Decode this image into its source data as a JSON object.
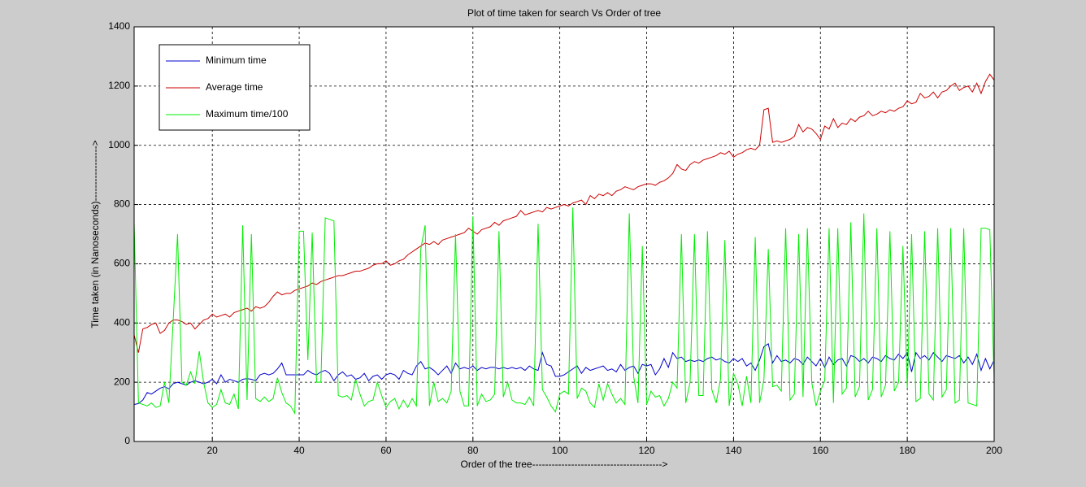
{
  "chart_data": {
    "type": "line",
    "title": "Plot of time taken for search  Vs Order of tree",
    "x_label": "Order of the tree---------------------------------------->",
    "y_label": "Time taken (in Nanoseconds)----------------->",
    "xlim": [
      2,
      200
    ],
    "ylim": [
      0,
      1400
    ],
    "xticks": [
      20,
      40,
      60,
      80,
      100,
      120,
      140,
      160,
      180,
      200
    ],
    "yticks": [
      0,
      200,
      400,
      600,
      800,
      1000,
      1200,
      1400
    ],
    "grid": true,
    "legend_position": "upper left",
    "x": [
      2,
      3,
      4,
      5,
      6,
      7,
      8,
      9,
      10,
      11,
      12,
      13,
      14,
      15,
      16,
      17,
      18,
      19,
      20,
      21,
      22,
      23,
      24,
      25,
      26,
      27,
      28,
      29,
      30,
      31,
      32,
      33,
      34,
      35,
      36,
      37,
      38,
      39,
      40,
      41,
      42,
      43,
      44,
      45,
      46,
      47,
      48,
      49,
      50,
      51,
      52,
      53,
      54,
      55,
      56,
      57,
      58,
      59,
      60,
      61,
      62,
      63,
      64,
      65,
      66,
      67,
      68,
      69,
      70,
      71,
      72,
      73,
      74,
      75,
      76,
      77,
      78,
      79,
      80,
      81,
      82,
      83,
      84,
      85,
      86,
      87,
      88,
      89,
      90,
      91,
      92,
      93,
      94,
      95,
      96,
      97,
      98,
      99,
      100,
      101,
      102,
      103,
      104,
      105,
      106,
      107,
      108,
      109,
      110,
      111,
      112,
      113,
      114,
      115,
      116,
      117,
      118,
      119,
      120,
      121,
      122,
      123,
      124,
      125,
      126,
      127,
      128,
      129,
      130,
      131,
      132,
      133,
      134,
      135,
      136,
      137,
      138,
      139,
      140,
      141,
      142,
      143,
      144,
      145,
      146,
      147,
      148,
      149,
      150,
      151,
      152,
      153,
      154,
      155,
      156,
      157,
      158,
      159,
      160,
      161,
      162,
      163,
      164,
      165,
      166,
      167,
      168,
      169,
      170,
      171,
      172,
      173,
      174,
      175,
      176,
      177,
      178,
      179,
      180,
      181,
      182,
      183,
      184,
      185,
      186,
      187,
      188,
      189,
      190,
      191,
      192,
      193,
      194,
      195,
      196,
      197,
      198,
      199,
      200
    ],
    "series": [
      {
        "name": "Minimum time",
        "color": "#0000cc",
        "values": [
          125,
          128,
          140,
          165,
          160,
          170,
          180,
          185,
          178,
          195,
          200,
          195,
          190,
          200,
          205,
          200,
          195,
          200,
          210,
          195,
          225,
          200,
          210,
          205,
          200,
          210,
          212,
          210,
          205,
          225,
          230,
          225,
          230,
          245,
          265,
          225,
          225,
          225,
          225,
          225,
          240,
          230,
          225,
          235,
          240,
          230,
          205,
          225,
          235,
          220,
          225,
          210,
          215,
          230,
          205,
          220,
          225,
          210,
          225,
          230,
          225,
          210,
          240,
          230,
          225,
          255,
          270,
          245,
          250,
          240,
          225,
          240,
          255,
          230,
          265,
          245,
          250,
          245,
          255,
          240,
          250,
          245,
          250,
          250,
          245,
          250,
          245,
          250,
          245,
          250,
          240,
          255,
          245,
          240,
          300,
          260,
          255,
          220,
          220,
          225,
          235,
          245,
          255,
          230,
          250,
          240,
          245,
          250,
          255,
          240,
          245,
          235,
          260,
          240,
          250,
          255,
          230,
          260,
          255,
          260,
          225,
          245,
          280,
          250,
          300,
          280,
          285,
          270,
          275,
          270,
          275,
          270,
          280,
          285,
          275,
          280,
          270,
          265,
          280,
          270,
          280,
          255,
          265,
          240,
          275,
          320,
          330,
          265,
          290,
          270,
          275,
          265,
          280,
          275,
          260,
          285,
          270,
          255,
          280,
          250,
          285,
          260,
          275,
          280,
          255,
          290,
          285,
          270,
          280,
          265,
          285,
          280,
          270,
          290,
          280,
          275,
          295,
          280,
          300,
          235,
          300,
          280,
          290,
          275,
          300,
          285,
          270,
          290,
          285,
          280,
          290,
          265,
          285,
          260,
          295,
          240,
          280,
          245,
          275
        ]
      },
      {
        "name": "Average time",
        "color": "#cc0000",
        "values": [
          360,
          300,
          380,
          385,
          395,
          400,
          365,
          375,
          400,
          410,
          410,
          405,
          395,
          400,
          380,
          395,
          410,
          415,
          430,
          420,
          425,
          430,
          420,
          435,
          440,
          445,
          450,
          440,
          455,
          450,
          455,
          470,
          490,
          505,
          495,
          500,
          500,
          510,
          515,
          520,
          525,
          535,
          530,
          540,
          545,
          550,
          555,
          560,
          560,
          565,
          570,
          575,
          575,
          580,
          585,
          595,
          600,
          600,
          610,
          595,
          600,
          610,
          615,
          630,
          640,
          650,
          660,
          670,
          665,
          675,
          665,
          680,
          685,
          690,
          695,
          700,
          705,
          720,
          710,
          700,
          715,
          720,
          725,
          740,
          730,
          745,
          750,
          755,
          760,
          780,
          765,
          770,
          775,
          780,
          775,
          790,
          785,
          790,
          795,
          800,
          795,
          805,
          810,
          815,
          800,
          830,
          820,
          835,
          830,
          840,
          830,
          845,
          850,
          860,
          855,
          850,
          860,
          865,
          870,
          870,
          865,
          875,
          880,
          890,
          905,
          935,
          920,
          915,
          935,
          945,
          940,
          950,
          955,
          960,
          965,
          975,
          970,
          980,
          960,
          970,
          975,
          985,
          990,
          985,
          1000,
          1120,
          1125,
          1010,
          1015,
          1010,
          1015,
          1020,
          1030,
          1070,
          1045,
          1060,
          1055,
          1040,
          1020,
          1065,
          1055,
          1090,
          1060,
          1075,
          1070,
          1090,
          1080,
          1095,
          1100,
          1115,
          1100,
          1105,
          1115,
          1110,
          1120,
          1115,
          1125,
          1130,
          1150,
          1140,
          1145,
          1175,
          1160,
          1165,
          1180,
          1160,
          1180,
          1185,
          1200,
          1210,
          1185,
          1195,
          1200,
          1180,
          1210,
          1175,
          1215,
          1240,
          1220
        ]
      },
      {
        "name": "Maximum time/100",
        "color": "#00ee00",
        "values": [
          740,
          130,
          125,
          120,
          130,
          115,
          120,
          200,
          130,
          410,
          700,
          200,
          190,
          235,
          195,
          305,
          200,
          130,
          115,
          125,
          175,
          130,
          125,
          160,
          110,
          730,
          140,
          700,
          145,
          135,
          150,
          135,
          145,
          215,
          165,
          130,
          120,
          95,
          710,
          710,
          275,
          705,
          200,
          200,
          755,
          750,
          745,
          155,
          150,
          155,
          140,
          210,
          160,
          120,
          135,
          140,
          200,
          155,
          115,
          135,
          145,
          110,
          140,
          115,
          145,
          120,
          650,
          730,
          120,
          200,
          135,
          145,
          130,
          170,
          700,
          170,
          120,
          120,
          760,
          120,
          160,
          135,
          140,
          160,
          710,
          150,
          200,
          140,
          130,
          130,
          125,
          150,
          120,
          735,
          175,
          150,
          120,
          100,
          160,
          170,
          160,
          790,
          145,
          180,
          170,
          130,
          115,
          195,
          140,
          195,
          160,
          130,
          145,
          125,
          770,
          220,
          130,
          660,
          125,
          170,
          150,
          155,
          120,
          145,
          200,
          180,
          700,
          130,
          200,
          700,
          155,
          155,
          710,
          175,
          130,
          210,
          680,
          120,
          230,
          195,
          120,
          220,
          130,
          690,
          130,
          210,
          650,
          185,
          190,
          170,
          720,
          140,
          160,
          700,
          150,
          720,
          200,
          120,
          170,
          205,
          720,
          130,
          720,
          160,
          180,
          740,
          150,
          185,
          770,
          140,
          175,
          720,
          150,
          190,
          710,
          170,
          200,
          660,
          180,
          700,
          135,
          145,
          710,
          160,
          140,
          720,
          150,
          175,
          720,
          130,
          140,
          720,
          130,
          125,
          120,
          720,
          720,
          715,
          200
        ]
      }
    ]
  }
}
